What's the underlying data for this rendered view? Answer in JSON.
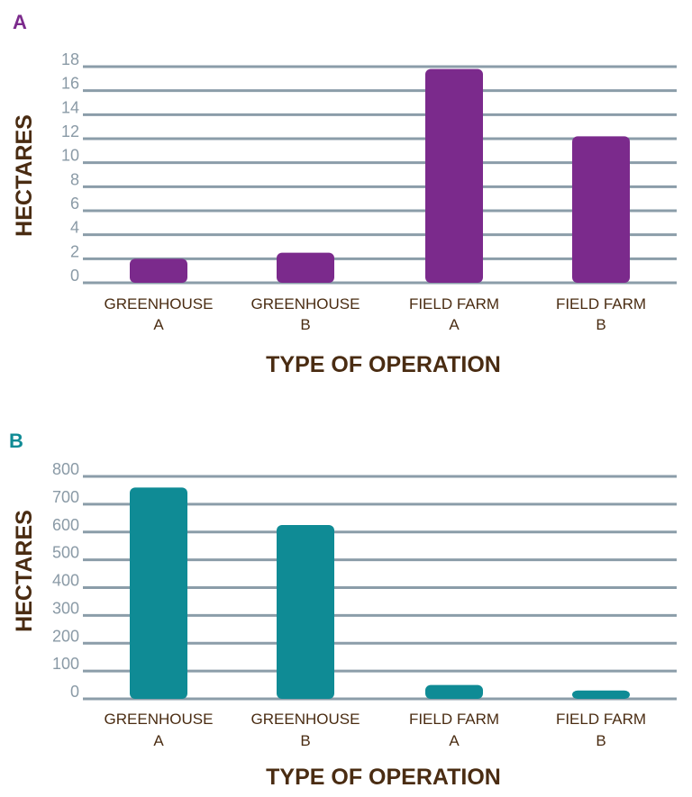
{
  "colors": {
    "grid": "#8b9da9",
    "text": "#4a2c12",
    "tick": "#8a9aa6"
  },
  "chart_data": [
    {
      "panel": "A",
      "type": "bar",
      "color": "#7b2a8c",
      "categories": [
        [
          "GREENHOUSE",
          "A"
        ],
        [
          "GREENHOUSE",
          "B"
        ],
        [
          "FIELD FARM",
          "A"
        ],
        [
          "FIELD FARM",
          "B"
        ]
      ],
      "values": [
        2,
        2.5,
        17.8,
        12.2
      ],
      "yticks": [
        0,
        2,
        4,
        6,
        8,
        10,
        12,
        14,
        16,
        18
      ],
      "ylim": [
        0,
        18
      ],
      "xlabel": "TYPE OF OPERATION",
      "ylabel": "HECTARES"
    },
    {
      "panel": "B",
      "type": "bar",
      "color": "#0f8b95",
      "categories": [
        [
          "GREENHOUSE",
          "A"
        ],
        [
          "GREENHOUSE",
          "B"
        ],
        [
          "FIELD FARM",
          "A"
        ],
        [
          "FIELD FARM",
          "B"
        ]
      ],
      "values": [
        760,
        625,
        50,
        30
      ],
      "yticks": [
        0,
        100,
        200,
        300,
        400,
        500,
        600,
        700,
        800
      ],
      "ylim": [
        0,
        800
      ],
      "xlabel": "TYPE OF OPERATION",
      "ylabel": "HECTARES"
    }
  ]
}
